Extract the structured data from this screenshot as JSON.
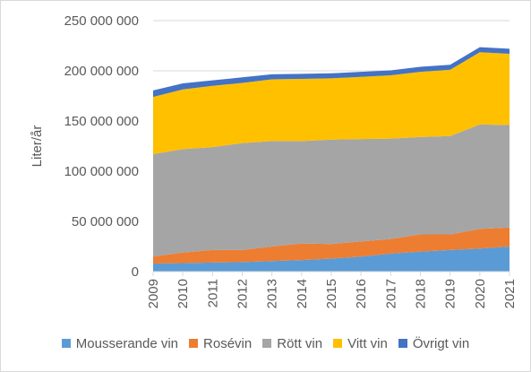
{
  "chart_data": {
    "type": "area",
    "stacked": true,
    "ylabel": "Liter/år",
    "xlabel": "",
    "ylim": [
      0,
      250000000
    ],
    "y_ticks": [
      {
        "value": 0,
        "label": "0"
      },
      {
        "value": 50000000,
        "label": "50 000 000"
      },
      {
        "value": 100000000,
        "label": "100 000 000"
      },
      {
        "value": 150000000,
        "label": "150 000 000"
      },
      {
        "value": 200000000,
        "label": "200 000 000"
      },
      {
        "value": 250000000,
        "label": "250 000 000"
      }
    ],
    "grid": "horizontal",
    "legend_position": "bottom",
    "categories": [
      "2009",
      "2010",
      "2011",
      "2012",
      "2013",
      "2014",
      "2015",
      "2016",
      "2017",
      "2018",
      "2019",
      "2020",
      "2021"
    ],
    "series": [
      {
        "name": "Mousserande vin",
        "color": "#5b9bd5",
        "values": [
          8000000,
          8500000,
          9000000,
          9500000,
          10500000,
          11500000,
          13000000,
          15000000,
          18000000,
          20000000,
          21500000,
          23000000,
          25000000
        ]
      },
      {
        "name": "Rosévin",
        "color": "#ed7d31",
        "values": [
          7000000,
          10500000,
          12500000,
          12000000,
          14500000,
          16500000,
          14500000,
          15000000,
          14500000,
          17000000,
          15500000,
          19500000,
          19000000
        ]
      },
      {
        "name": "Rött vin",
        "color": "#a5a5a5",
        "values": [
          102000000,
          103000000,
          102500000,
          106500000,
          105000000,
          102000000,
          104000000,
          102000000,
          100000000,
          97000000,
          98000000,
          104000000,
          102000000
        ]
      },
      {
        "name": "Vitt vin",
        "color": "#ffc000",
        "values": [
          57000000,
          59500000,
          61000000,
          60000000,
          61500000,
          62000000,
          61000000,
          62000000,
          63000000,
          65000000,
          66000000,
          72000000,
          71000000
        ]
      },
      {
        "name": "Övrigt vin",
        "color": "#4472c4",
        "values": [
          6500000,
          6000000,
          5500000,
          5500000,
          5000000,
          5000000,
          5000000,
          5000000,
          5000000,
          5000000,
          5000000,
          5000000,
          5000000
        ]
      }
    ]
  }
}
